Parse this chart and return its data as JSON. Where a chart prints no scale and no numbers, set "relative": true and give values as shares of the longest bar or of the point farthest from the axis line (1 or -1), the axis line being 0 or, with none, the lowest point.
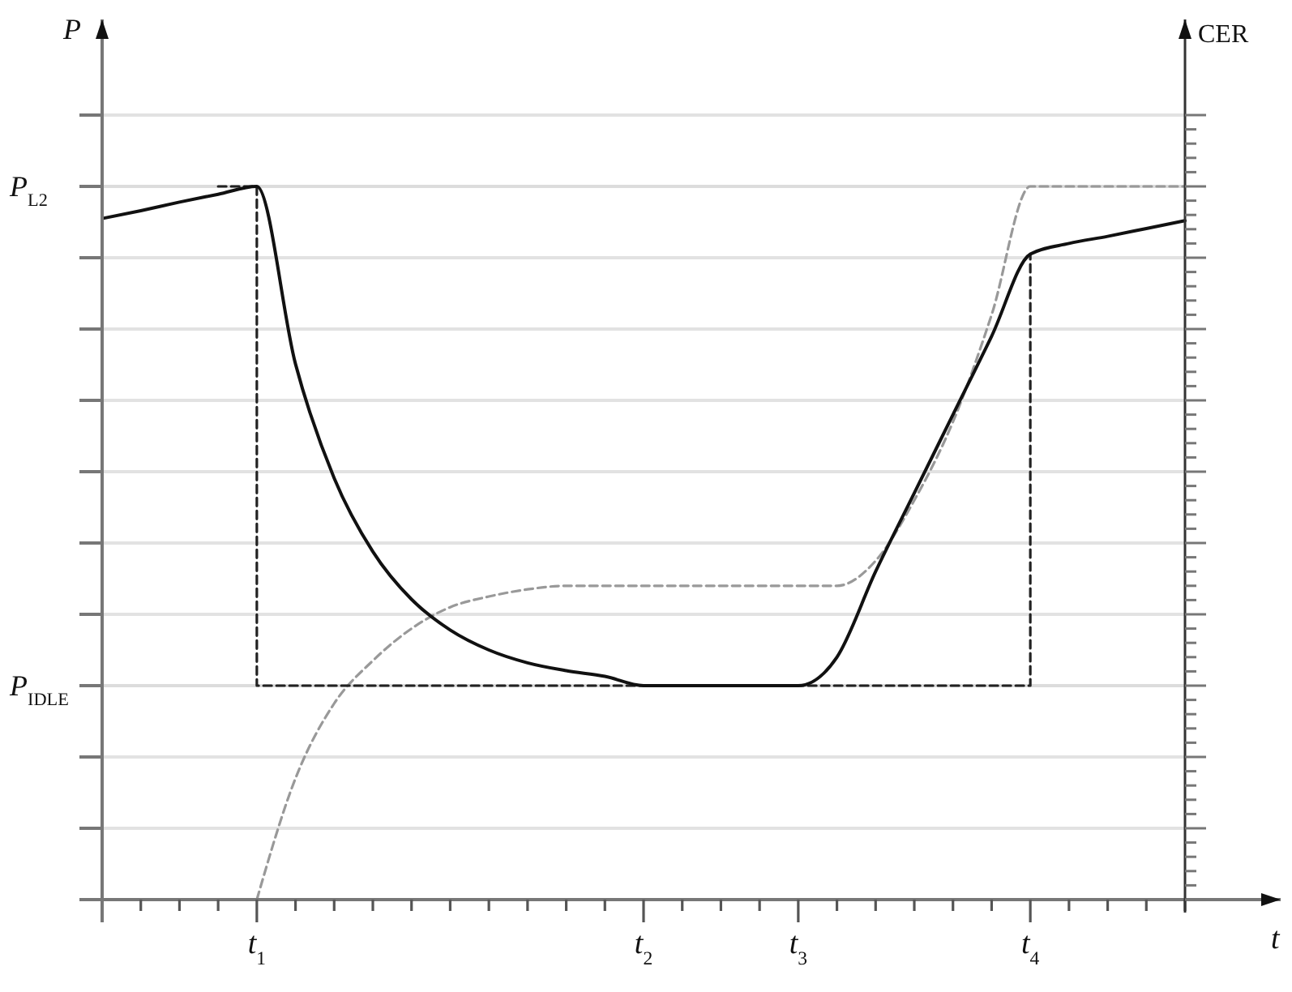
{
  "chart_data": {
    "type": "line",
    "xlabel": "t",
    "ylabel": "P",
    "annotations": [
      "CER"
    ],
    "relative": true,
    "grid": "y",
    "categories": [
      null,
      null,
      null,
      null,
      "t$_{1}$",
      null,
      null,
      null,
      null,
      null,
      null,
      null,
      null,
      null,
      "t$_{2}$",
      null,
      null,
      null,
      "t$_{3}$",
      null,
      null,
      null,
      null,
      null,
      "t$_{4}$",
      null,
      null,
      null,
      null
    ],
    "ref_lines": [
      {
        "axis": "y",
        "value": 1,
        "label": "P$_{L2}$"
      },
      {
        "axis": "y",
        "value": 0.3,
        "label": "P$_{IDLE}$"
      }
    ],
    "series": [
      {
        "color": "#999999",
        "line_style": "dashed",
        "values": [
          null,
          null,
          null,
          null,
          0,
          0.17,
          0.275,
          0.335,
          0.38,
          0.41,
          0.425,
          0.435,
          0.44,
          0.44,
          0.44,
          0.44,
          0.44,
          0.44,
          0.44,
          0.44,
          0.475,
          0.56,
          0.67,
          0.82,
          1,
          1,
          1,
          1,
          1
        ]
      },
      {
        "type": "step",
        "color": "#222222",
        "line_style": "dashed",
        "values": [
          null,
          null,
          null,
          1,
          0.3,
          0.3,
          0.3,
          0.3,
          0.3,
          0.3,
          0.3,
          0.3,
          0.3,
          0.3,
          0.3,
          0.3,
          0.3,
          0.3,
          0.3,
          0.3,
          0.3,
          0.3,
          0.3,
          0.3,
          0.905,
          null,
          null,
          null,
          null
        ]
      },
      {
        "color": "#111111",
        "line_style": "solid",
        "values": [
          0.955,
          0.966,
          0.978,
          0.989,
          1,
          0.751,
          0.591,
          0.488,
          0.421,
          0.378,
          0.35,
          0.332,
          0.321,
          0.313,
          0.3,
          0.3,
          0.3,
          0.3,
          0.3,
          0.34,
          0.46,
          0.57,
          0.68,
          0.79,
          0.905,
          0.92,
          0.93,
          0.941,
          0.952
        ]
      }
    ]
  }
}
